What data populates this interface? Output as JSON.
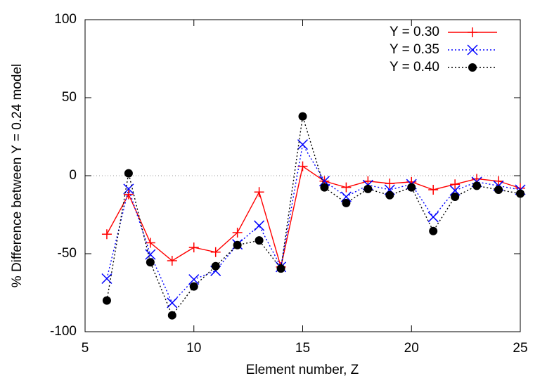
{
  "chart_data": {
    "type": "line",
    "x_label": "Element number, Z",
    "y_label": "% Difference between Y = 0.24 model",
    "x": [
      6,
      7,
      8,
      9,
      10,
      11,
      12,
      13,
      14,
      15,
      16,
      17,
      18,
      19,
      20,
      21,
      22,
      23,
      24,
      25
    ],
    "series": [
      {
        "name": "Y = 0.30",
        "color": "#ff0000",
        "marker": "plus",
        "line_style": "solid",
        "values": [
          -37.5,
          -12,
          -43,
          -54.5,
          -46,
          -49,
          -36.5,
          -10.5,
          -58.5,
          6,
          -3.5,
          -7.5,
          -3.5,
          -5,
          -4,
          -9,
          -5.5,
          -2,
          -3.5,
          -8
        ]
      },
      {
        "name": "Y = 0.35",
        "color": "#0000ff",
        "marker": "cross",
        "line_style": "dotted",
        "values": [
          -66,
          -8.5,
          -50.5,
          -81.5,
          -66.5,
          -61,
          -44,
          -32,
          -58.5,
          20,
          -3.5,
          -13.5,
          -6,
          -9,
          -5.5,
          -26.5,
          -9.5,
          -4,
          -6.5,
          -9
        ]
      },
      {
        "name": "Y = 0.40",
        "color": "#000000",
        "marker": "circle",
        "line_style": "dotted",
        "values": [
          -80,
          1.5,
          -55.5,
          -89.5,
          -71,
          -58,
          -44.5,
          -41.5,
          -59.5,
          38,
          -7.5,
          -17.5,
          -8.5,
          -12.5,
          -7.5,
          -35.5,
          -13.5,
          -6.5,
          -9,
          -11.5
        ]
      }
    ],
    "xlim": [
      5,
      25
    ],
    "xticks": [
      5,
      10,
      15,
      20,
      25
    ],
    "ylim": [
      -100,
      100
    ],
    "yticks": [
      -100,
      -50,
      0,
      50,
      100
    ],
    "zero_line": true,
    "legend": "top-right",
    "grid": false
  }
}
